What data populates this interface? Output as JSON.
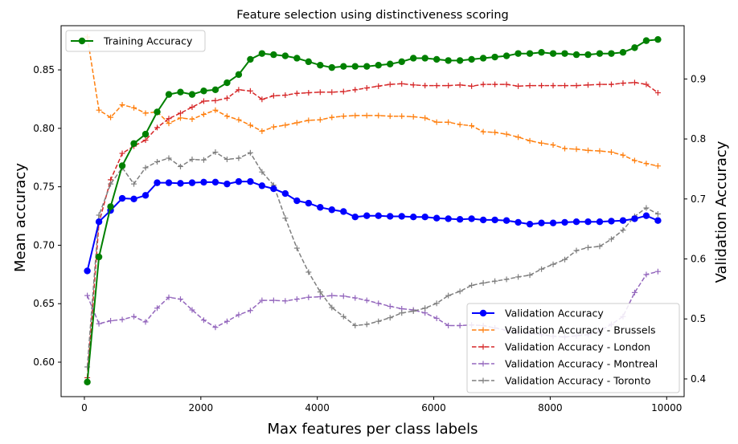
{
  "chart_data": {
    "type": "line",
    "title": "Feature selection using distinctiveness scoring",
    "xlabel": "Max features per class labels",
    "ylabel_left": "Mean accuracy",
    "ylabel_right": "Validation Accuracy",
    "xlim": [
      -400,
      10300
    ],
    "ylim_left": [
      0.5705,
      0.8878
    ],
    "ylim_right": [
      0.3705,
      0.9888
    ],
    "x_ticks": [
      0,
      2000,
      4000,
      6000,
      8000,
      10000
    ],
    "y_ticks_left": [
      0.6,
      0.65,
      0.7,
      0.75,
      0.8,
      0.85
    ],
    "y_ticks_left_labels": [
      "0.60",
      "0.65",
      "0.70",
      "0.75",
      "0.80",
      "0.85"
    ],
    "y_ticks_right": [
      0.4,
      0.5,
      0.6,
      0.7,
      0.8,
      0.9
    ],
    "y_ticks_right_labels": [
      "0.4",
      "0.5",
      "0.6",
      "0.7",
      "0.8",
      "0.9"
    ],
    "x": [
      50,
      250,
      450,
      650,
      850,
      1050,
      1250,
      1450,
      1650,
      1850,
      2050,
      2250,
      2450,
      2650,
      2850,
      3050,
      3250,
      3450,
      3650,
      3850,
      4050,
      4250,
      4450,
      4650,
      4850,
      5050,
      5250,
      5450,
      5650,
      5850,
      6050,
      6250,
      6450,
      6650,
      6850,
      7050,
      7250,
      7450,
      7650,
      7850,
      8050,
      8250,
      8450,
      8650,
      8850,
      9050,
      9250,
      9450,
      9650,
      9850
    ],
    "left_axis_series": [
      {
        "name": "Training Accuracy",
        "color": "#008000",
        "style": "solid-circle",
        "values": [
          0.583,
          0.69,
          0.733,
          0.768,
          0.787,
          0.795,
          0.814,
          0.829,
          0.831,
          0.829,
          0.832,
          0.833,
          0.839,
          0.846,
          0.859,
          0.864,
          0.863,
          0.862,
          0.86,
          0.857,
          0.854,
          0.852,
          0.853,
          0.853,
          0.853,
          0.854,
          0.855,
          0.857,
          0.86,
          0.86,
          0.859,
          0.858,
          0.858,
          0.859,
          0.86,
          0.861,
          0.862,
          0.864,
          0.864,
          0.865,
          0.864,
          0.864,
          0.863,
          0.863,
          0.864,
          0.864,
          0.865,
          0.869,
          0.875,
          0.876
        ]
      }
    ],
    "right_axis_series": [
      {
        "name": "Validation Accuracy",
        "color": "#0000ff",
        "style": "solid-circle",
        "values": [
          0.58,
          0.662,
          0.681,
          0.701,
          0.7,
          0.706,
          0.727,
          0.727,
          0.726,
          0.727,
          0.728,
          0.728,
          0.725,
          0.729,
          0.729,
          0.722,
          0.717,
          0.709,
          0.697,
          0.693,
          0.686,
          0.682,
          0.679,
          0.67,
          0.672,
          0.672,
          0.671,
          0.671,
          0.67,
          0.67,
          0.668,
          0.667,
          0.666,
          0.667,
          0.665,
          0.665,
          0.664,
          0.661,
          0.658,
          0.66,
          0.66,
          0.661,
          0.662,
          0.662,
          0.662,
          0.663,
          0.664,
          0.667,
          0.672,
          0.664
        ]
      },
      {
        "name": "Validation Accuracy - Brussels",
        "color": "#ff7f0e",
        "style": "dashed-plus",
        "values": [
          0.97,
          0.848,
          0.836,
          0.857,
          0.852,
          0.843,
          0.845,
          0.826,
          0.835,
          0.833,
          0.841,
          0.848,
          0.838,
          0.832,
          0.823,
          0.813,
          0.82,
          0.823,
          0.827,
          0.831,
          0.832,
          0.836,
          0.838,
          0.839,
          0.839,
          0.839,
          0.838,
          0.838,
          0.837,
          0.835,
          0.828,
          0.828,
          0.824,
          0.822,
          0.812,
          0.811,
          0.808,
          0.803,
          0.797,
          0.793,
          0.79,
          0.784,
          0.783,
          0.781,
          0.78,
          0.778,
          0.773,
          0.764,
          0.759,
          0.755
        ]
      },
      {
        "name": "Validation Accuracy - London",
        "color": "#d62728",
        "style": "dashed-plus",
        "values": [
          0.402,
          0.66,
          0.732,
          0.776,
          0.788,
          0.798,
          0.819,
          0.834,
          0.843,
          0.853,
          0.863,
          0.864,
          0.868,
          0.882,
          0.88,
          0.866,
          0.872,
          0.873,
          0.876,
          0.877,
          0.878,
          0.878,
          0.879,
          0.882,
          0.885,
          0.888,
          0.891,
          0.892,
          0.89,
          0.889,
          0.889,
          0.889,
          0.89,
          0.888,
          0.891,
          0.891,
          0.891,
          0.888,
          0.889,
          0.889,
          0.889,
          0.889,
          0.889,
          0.89,
          0.891,
          0.891,
          0.893,
          0.894,
          0.891,
          0.877
        ]
      },
      {
        "name": "Validation Accuracy - Montreal",
        "color": "#9467bd",
        "style": "dashed-plus",
        "values": [
          0.539,
          0.492,
          0.497,
          0.499,
          0.504,
          0.495,
          0.518,
          0.536,
          0.533,
          0.515,
          0.498,
          0.486,
          0.496,
          0.507,
          0.514,
          0.531,
          0.531,
          0.53,
          0.533,
          0.536,
          0.537,
          0.539,
          0.538,
          0.535,
          0.531,
          0.526,
          0.521,
          0.517,
          0.515,
          0.51,
          0.501,
          0.489,
          0.489,
          0.49,
          0.489,
          0.485,
          0.481,
          0.478,
          0.476,
          0.474,
          0.471,
          0.47,
          0.472,
          0.474,
          0.48,
          0.491,
          0.504,
          0.544,
          0.574,
          0.579
        ]
      },
      {
        "name": "Validation Accuracy - Toronto",
        "color": "#7f7f7f",
        "style": "dashed-plus",
        "values": [
          0.42,
          0.673,
          0.725,
          0.752,
          0.725,
          0.752,
          0.762,
          0.768,
          0.754,
          0.766,
          0.765,
          0.778,
          0.766,
          0.768,
          0.777,
          0.745,
          0.723,
          0.668,
          0.618,
          0.578,
          0.545,
          0.519,
          0.504,
          0.489,
          0.491,
          0.496,
          0.502,
          0.51,
          0.513,
          0.518,
          0.526,
          0.539,
          0.546,
          0.556,
          0.56,
          0.563,
          0.566,
          0.57,
          0.573,
          0.583,
          0.591,
          0.599,
          0.614,
          0.619,
          0.621,
          0.633,
          0.648,
          0.671,
          0.685,
          0.675
        ]
      }
    ],
    "legend_top_left": [
      "Training Accuracy"
    ],
    "legend_bottom_right": [
      "Validation Accuracy",
      "Validation Accuracy - Brussels",
      "Validation Accuracy - London",
      "Validation Accuracy - Montreal",
      "Validation Accuracy - Toronto"
    ],
    "grid": false
  }
}
